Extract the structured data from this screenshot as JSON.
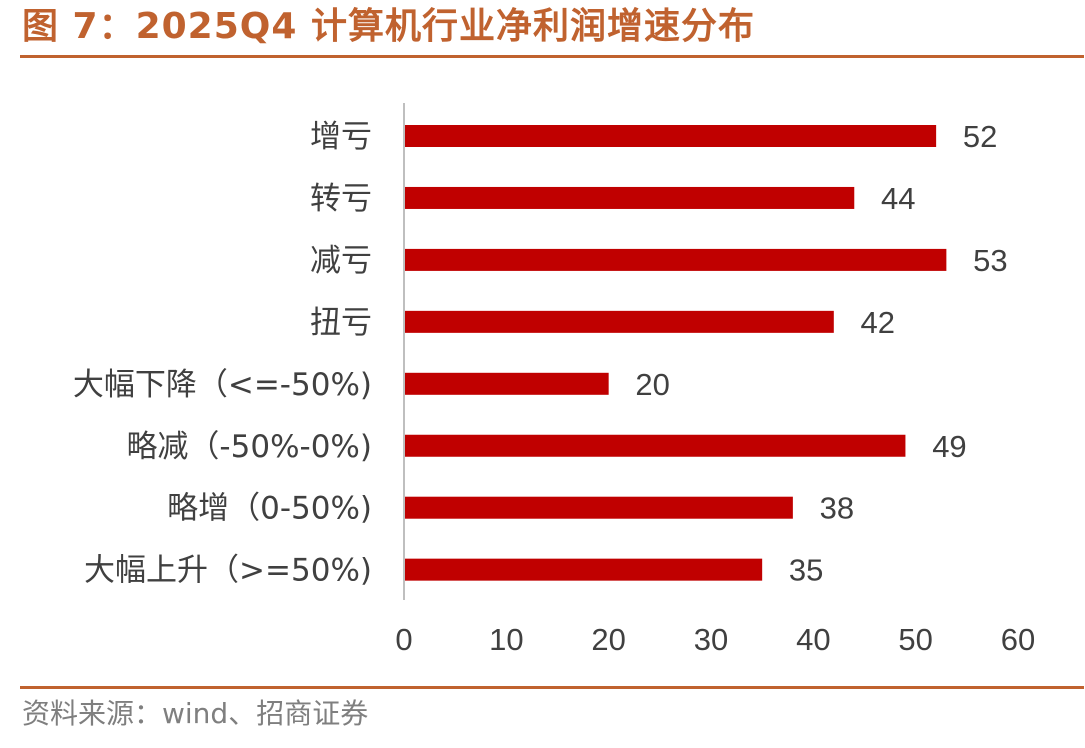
{
  "figure": {
    "title": "图 7：2025Q4 计算机行业净利润增速分布",
    "source": "资料来源：wind、招商证券"
  },
  "colors": {
    "title": "#c0622f",
    "rule": "#c0622f",
    "bar": "#c00000",
    "axis": "#bfbfbf",
    "text": "#404040",
    "source_text": "#7f7f7f"
  },
  "chart_data": {
    "type": "bar",
    "orientation": "horizontal",
    "title": "",
    "xlabel": "",
    "ylabel": "",
    "categories": [
      "增亏",
      "转亏",
      "减亏",
      "扭亏",
      "大幅下降（<=-50%)",
      "略减（-50%-0%)",
      "略增（0-50%)",
      "大幅上升（>=50%)"
    ],
    "values": [
      52,
      44,
      53,
      42,
      20,
      49,
      38,
      35
    ],
    "xlim": [
      0,
      60
    ],
    "xticks": [
      0,
      10,
      20,
      30,
      40,
      50,
      60
    ],
    "data_labels": true,
    "grid": false,
    "legend": "none"
  }
}
